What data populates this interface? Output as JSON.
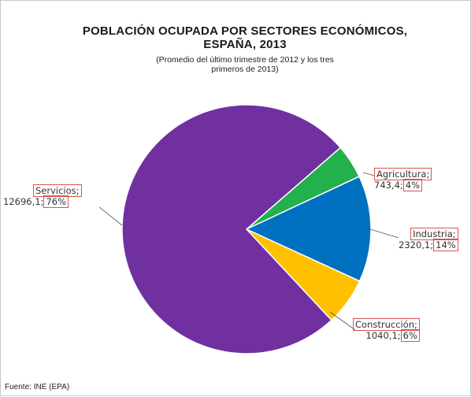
{
  "chart_data": {
    "type": "pie",
    "title_line1": "POBLACIÓN OCUPADA POR SECTORES ECONÓMICOS,",
    "title_line2": "ESPAÑA, 2013",
    "subtitle_line1": "(Promedio del último trimestre de 2012 y los tres",
    "subtitle_line2": "primeros de 2013)",
    "source": "Fuente: INE (EPA)",
    "slices": [
      {
        "name": "Agricultura",
        "name_label": "Agricultura;",
        "value": 743.4,
        "value_text": "743,4;",
        "percent_text": "4%",
        "color": "#22b14c"
      },
      {
        "name": "Industria",
        "name_label": "Industria;",
        "value": 2320.1,
        "value_text": "2320,1;",
        "percent_text": "14%",
        "color": "#0070c0"
      },
      {
        "name": "Construcción",
        "name_label": "Construcción;",
        "value": 1040.1,
        "value_text": "1040,1;",
        "percent_text": "6%",
        "color": "#ffc000"
      },
      {
        "name": "Servicios",
        "name_label": "Servicios;",
        "value": 12696.1,
        "value_text": "12696,1;",
        "percent_text": "76%",
        "color": "#7030a0"
      }
    ]
  }
}
